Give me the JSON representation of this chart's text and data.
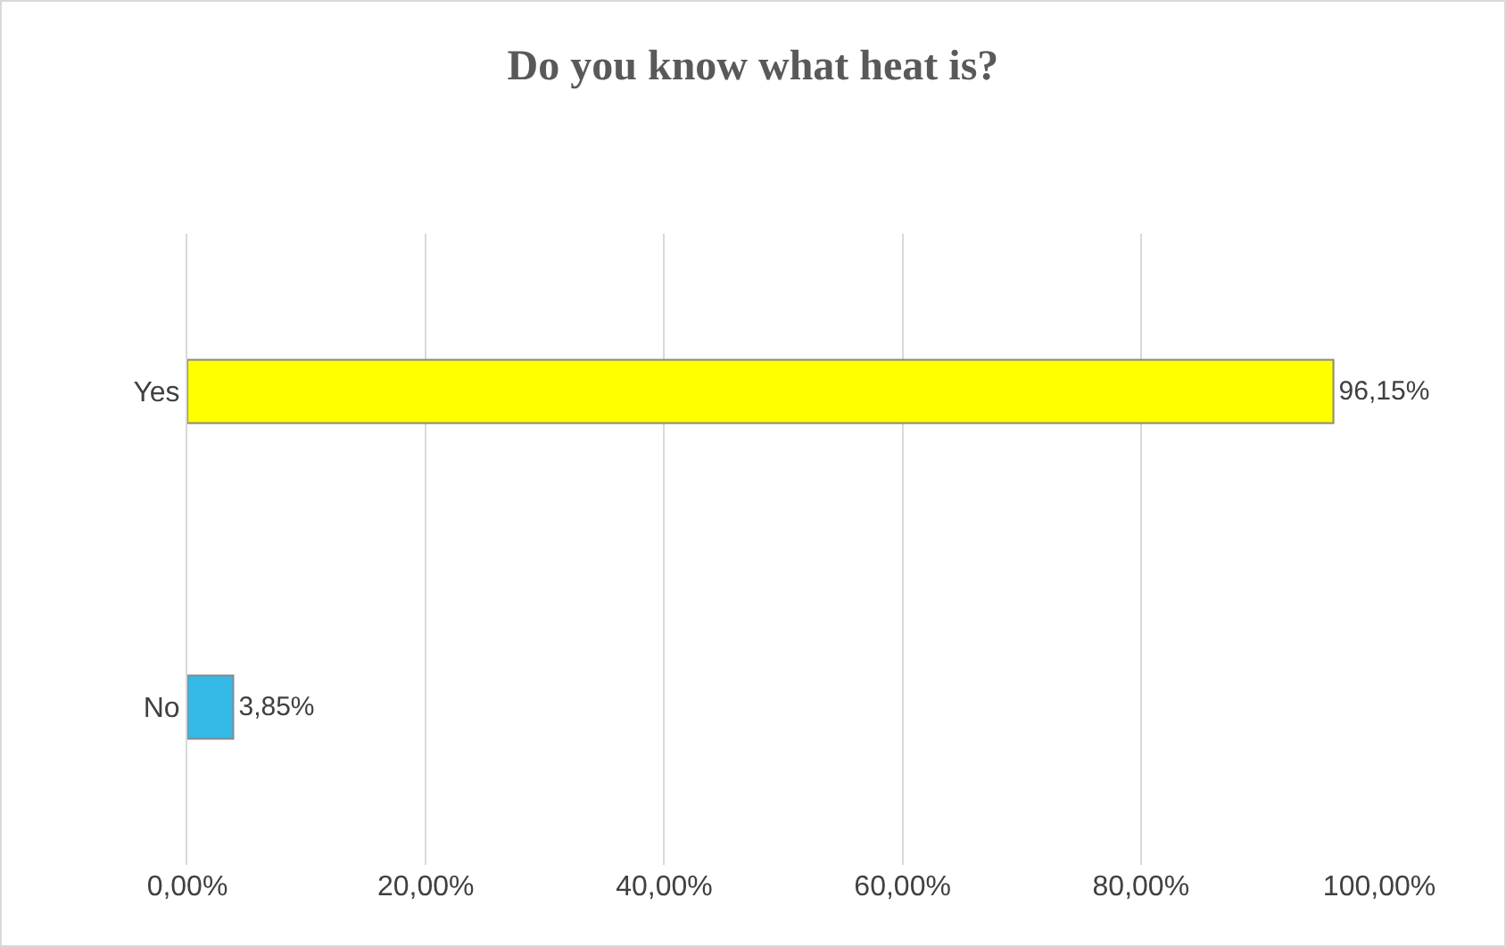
{
  "chart_data": {
    "type": "bar",
    "title": "Do you know what heat is?",
    "orientation": "horizontal",
    "categories": [
      "Yes",
      "No"
    ],
    "values": [
      96.15,
      3.85
    ],
    "colors": [
      "#ffff00",
      "#33b8e8"
    ],
    "value_labels": [
      "96,15%",
      "3,85%"
    ],
    "xlim": [
      0,
      100
    ],
    "xticks": [
      {
        "value": 0,
        "label": "0,00%"
      },
      {
        "value": 20,
        "label": "20,00%"
      },
      {
        "value": 40,
        "label": "40,00%"
      },
      {
        "value": 60,
        "label": "60,00%"
      },
      {
        "value": 80,
        "label": "80,00%"
      },
      {
        "value": 100,
        "label": "100,00%"
      }
    ],
    "grid": "x"
  }
}
